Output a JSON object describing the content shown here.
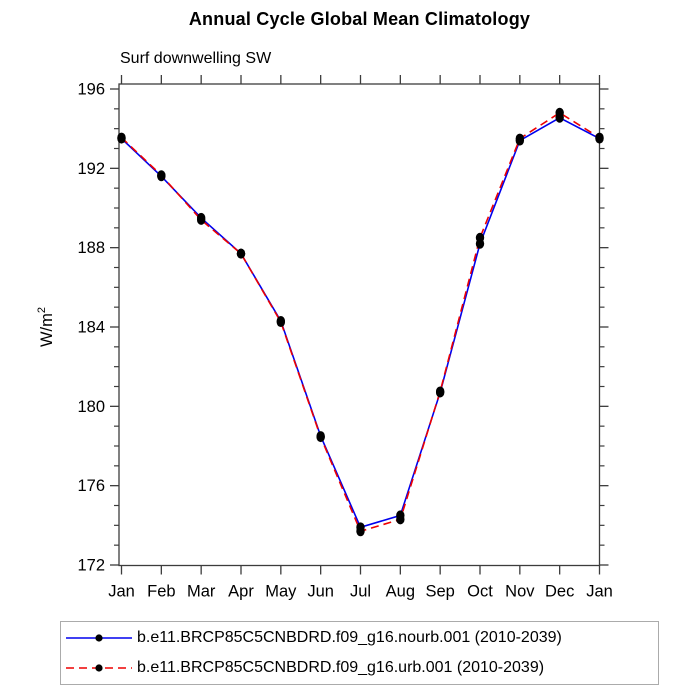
{
  "title": "Annual Cycle Global Mean Climatology",
  "subtitle": "Surf downwelling SW",
  "ylabel": {
    "base": "W/m",
    "sup": "2"
  },
  "chart_data": {
    "type": "line",
    "categories": [
      "Jan",
      "Feb",
      "Mar",
      "Apr",
      "May",
      "Jun",
      "Jul",
      "Aug",
      "Sep",
      "Oct",
      "Nov",
      "Dec",
      "Jan"
    ],
    "series": [
      {
        "name": "b.e11.BRCP85C5CNBDRD.f09_g16.nourb.001 (2010-2039)",
        "color": "#0000ee",
        "style": "solid",
        "values": [
          193.5,
          191.6,
          189.5,
          187.7,
          184.3,
          178.5,
          173.9,
          174.5,
          180.7,
          188.2,
          193.4,
          194.55,
          193.5
        ]
      },
      {
        "name": "b.e11.BRCP85C5CNBDRD.f09_g16.urb.001 (2010-2039)",
        "color": "#ee0000",
        "style": "dashed",
        "values": [
          193.55,
          191.65,
          189.4,
          187.7,
          184.25,
          178.45,
          173.7,
          174.3,
          180.75,
          188.5,
          193.5,
          194.8,
          193.55
        ]
      }
    ],
    "yticks": [
      172,
      176,
      180,
      184,
      188,
      192,
      196
    ],
    "ylim": [
      171.95,
      196.25
    ],
    "minor_tick_step": 1,
    "marker": "filled-circle",
    "marker_color": "#000000",
    "axis_color": "#3c3c3c",
    "grid": false,
    "legend_position": "bottom"
  }
}
